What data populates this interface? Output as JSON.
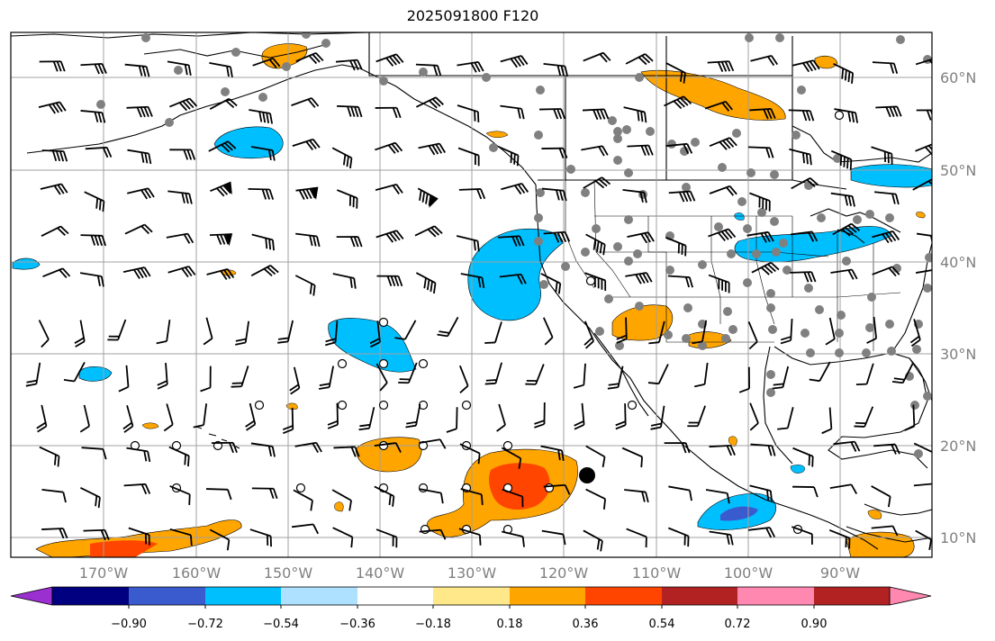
{
  "title": "2025091800 F120",
  "map": {
    "lat_labels": [
      "60°N",
      "50°N",
      "40°N",
      "30°N",
      "20°N",
      "10°N"
    ],
    "lon_labels": [
      "170°W",
      "160°W",
      "150°W",
      "140°W",
      "130°W",
      "120°W",
      "110°W",
      "100°W",
      "90°W"
    ],
    "gridline_color": "#a0a0a0",
    "coast_color": "#000000",
    "station_dot_color": "#808080",
    "wind_barbs": "black",
    "storm_marker": "filled-black-circle"
  },
  "colorbar": {
    "ticks": [
      "−0.90",
      "−0.72",
      "−0.54",
      "−0.36",
      "−0.18",
      "0.18",
      "0.36",
      "0.54",
      "0.72",
      "0.90"
    ],
    "colors": [
      "#9b30d0",
      "#000080",
      "#3a5bcd",
      "#00bfff",
      "#aee0ff",
      "#ffffff",
      "#ffe88a",
      "#ffa500",
      "#ff4500",
      "#b22222",
      "#ff88b0"
    ],
    "extend": "both"
  }
}
